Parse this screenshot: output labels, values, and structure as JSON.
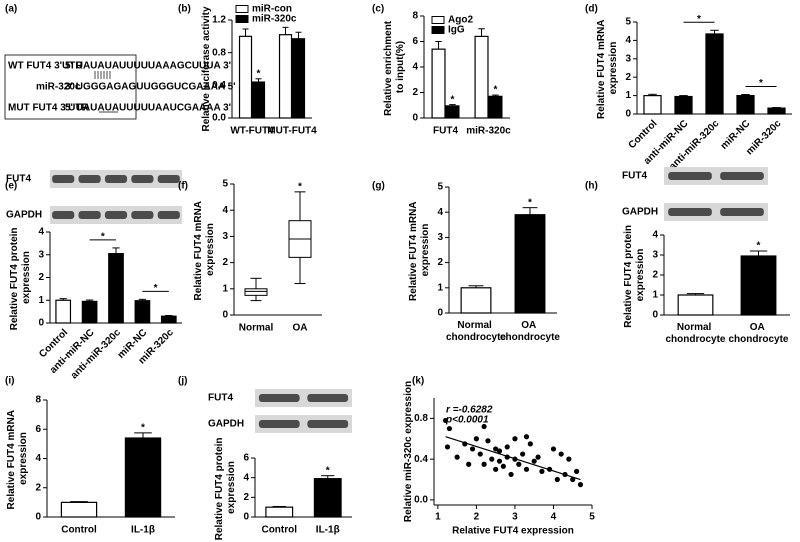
{
  "diagram": {
    "panel_label": "(a)",
    "rows": [
      {
        "label": "WT FUT4 3'UTR",
        "sequence": "5' UAUAUAUUUUUAAAGCUUUA 3'"
      },
      {
        "label": "miR-320c",
        "sequence": "3' UGGGAGAGUUGGGUCGAAAA 5'"
      },
      {
        "label": "MUT FUT4 3'UTR",
        "sequence": "5' UAUAUAUUUUUAAUCGAAAA 3'"
      }
    ]
  },
  "chart_data": [
    {
      "type": "bar",
      "panel_label": "(b)",
      "ylabel": "Relative luciferase activity",
      "categories": [
        "WT-FUT4",
        "MUT-FUT4"
      ],
      "series": [
        {
          "name": "miR-con",
          "color": "#ffffff",
          "values": [
            1.0,
            1.02
          ],
          "errors": [
            0.09,
            0.09
          ]
        },
        {
          "name": "miR-320c",
          "color": "#000000",
          "values": [
            0.44,
            0.97
          ],
          "errors": [
            0.04,
            0.08
          ]
        }
      ],
      "ylim": [
        0,
        1.2
      ],
      "yticks": [
        {
          "value": 0,
          "label": "0.0"
        },
        0.4,
        0.8,
        1.2
      ],
      "legend": "top-left",
      "annotations": [
        {
          "text": "*",
          "category": "WT-FUT4",
          "series": "miR-320c"
        }
      ]
    },
    {
      "type": "bar",
      "panel_label": "(c)",
      "ylabel": "Relative enrichment to input(%)",
      "categories": [
        "FUT4",
        "miR-320c"
      ],
      "series": [
        {
          "name": "Ago2",
          "color": "#ffffff",
          "values": [
            5.4,
            6.4
          ],
          "errors": [
            0.6,
            0.6
          ]
        },
        {
          "name": "IgG",
          "color": "#000000",
          "values": [
            0.95,
            1.7
          ],
          "errors": [
            0.1,
            0.1
          ]
        }
      ],
      "ylim": [
        0,
        8
      ],
      "yticks": [
        0,
        2,
        4,
        6,
        8
      ],
      "legend": "top-left",
      "annotations": [
        {
          "text": "*",
          "category": "FUT4",
          "series": "IgG"
        },
        {
          "text": "*",
          "category": "miR-320c",
          "series": "IgG"
        }
      ]
    },
    {
      "type": "bar",
      "panel_label": "(d)",
      "ylabel": "Relative FUT4 mRNA expression",
      "categories": [
        "Control",
        "anti-miR-NC",
        "anti-miR-320c",
        "miR-NC",
        "miR-320c"
      ],
      "values": [
        1.0,
        0.95,
        4.35,
        1.0,
        0.32
      ],
      "errors": [
        0.07,
        0.05,
        0.2,
        0.06,
        0.03
      ],
      "colors": [
        "#ffffff",
        "#000000",
        "#000000",
        "#000000",
        "#000000"
      ],
      "ylim": [
        0,
        5
      ],
      "yticks": [
        0,
        1,
        2,
        3,
        4,
        5
      ],
      "annotations": [
        {
          "text": "*",
          "from": "anti-miR-NC",
          "to": "anti-miR-320c"
        },
        {
          "text": "*",
          "from": "miR-NC",
          "to": "miR-320c"
        }
      ]
    },
    {
      "type": "bar",
      "panel_label": "(e)",
      "ylabel": "Relative FUT4 protein expression",
      "blot_labels": [
        "FUT4",
        "GAPDH"
      ],
      "categories": [
        "Control",
        "anti-miR-NC",
        "anti-miR-320c",
        "miR-NC",
        "miR-320c"
      ],
      "values": [
        1.0,
        0.95,
        3.05,
        0.98,
        0.3
      ],
      "errors": [
        0.07,
        0.06,
        0.25,
        0.06,
        0.03
      ],
      "colors": [
        "#ffffff",
        "#000000",
        "#000000",
        "#000000",
        "#000000"
      ],
      "ylim": [
        0,
        4
      ],
      "yticks": [
        0,
        1,
        2,
        3,
        4
      ],
      "annotations": [
        {
          "text": "*",
          "from": "anti-miR-NC",
          "to": "anti-miR-320c"
        },
        {
          "text": "*",
          "from": "miR-NC",
          "to": "miR-320c"
        }
      ]
    },
    {
      "type": "box",
      "panel_label": "(f)",
      "ylabel": "Relative FUT4 mRNA expression",
      "categories": [
        "Normal",
        "OA"
      ],
      "boxes": [
        {
          "min": 0.55,
          "q1": 0.75,
          "median": 0.9,
          "q3": 1.0,
          "max": 1.4
        },
        {
          "min": 1.2,
          "q1": 2.2,
          "median": 2.9,
          "q3": 3.6,
          "max": 4.7
        }
      ],
      "ylim": [
        0,
        5
      ],
      "yticks": [
        0,
        1,
        2,
        3,
        4,
        5
      ],
      "annotations": [
        {
          "text": "*",
          "category": "OA"
        }
      ]
    },
    {
      "type": "bar",
      "panel_label": "(g)",
      "ylabel": "Relative FUT4 mRNA expression",
      "categories": [
        "Normal chondrocyte",
        "OA chondrocyte"
      ],
      "values": [
        1.0,
        3.9
      ],
      "errors": [
        0.08,
        0.28
      ],
      "colors": [
        "#ffffff",
        "#000000"
      ],
      "ylim": [
        0,
        5
      ],
      "yticks": [
        0,
        1,
        2,
        3,
        4,
        5
      ],
      "annotations": [
        {
          "text": "*",
          "category": "OA chondrocyte"
        }
      ]
    },
    {
      "type": "bar",
      "panel_label": "(h)",
      "ylabel": "Relative FUT4 protein expression",
      "blot_labels": [
        "FUT4",
        "GAPDH"
      ],
      "categories": [
        "Normal chondrocyte",
        "OA chondrocyte"
      ],
      "values": [
        1.0,
        2.95
      ],
      "errors": [
        0.07,
        0.25
      ],
      "colors": [
        "#ffffff",
        "#000000"
      ],
      "ylim": [
        0,
        4
      ],
      "yticks": [
        0,
        1,
        2,
        3,
        4
      ],
      "annotations": [
        {
          "text": "*",
          "category": "OA chondrocyte"
        }
      ]
    },
    {
      "type": "bar",
      "panel_label": "(i)",
      "ylabel": "Relative FUT4 mRNA expression",
      "categories": [
        "Control",
        "IL-1β"
      ],
      "values": [
        1.0,
        5.4
      ],
      "errors": [
        0.05,
        0.35
      ],
      "colors": [
        "#ffffff",
        "#000000"
      ],
      "ylim": [
        0,
        8
      ],
      "yticks": [
        0,
        2,
        4,
        6,
        8
      ],
      "annotations": [
        {
          "text": "*",
          "category": "IL-1β"
        }
      ]
    },
    {
      "type": "bar",
      "panel_label": "(j)",
      "ylabel": "Relative FUT4 protein expression",
      "blot_labels": [
        "FUT4",
        "GAPDH"
      ],
      "categories": [
        "Control",
        "IL-1β"
      ],
      "values": [
        1.0,
        3.9
      ],
      "errors": [
        0.07,
        0.3
      ],
      "colors": [
        "#ffffff",
        "#000000"
      ],
      "ylim": [
        0,
        6
      ],
      "yticks": [
        0,
        2,
        4,
        6
      ],
      "annotations": [
        {
          "text": "*",
          "category": "IL-1β"
        }
      ]
    },
    {
      "type": "scatter",
      "panel_label": "(k)",
      "ylabel": "Relative miR-320c expression",
      "xlabel": "Relative FUT4 expression",
      "stats": [
        "r =-0.6282",
        "p<0.0001"
      ],
      "x": [
        1.2,
        1.25,
        1.3,
        1.5,
        1.7,
        1.8,
        1.9,
        2.0,
        2.1,
        2.2,
        2.3,
        2.4,
        2.5,
        2.5,
        2.6,
        2.6,
        2.7,
        2.8,
        2.9,
        3.0,
        3.0,
        3.1,
        3.2,
        3.3,
        3.4,
        3.5,
        3.6,
        3.7,
        3.9,
        4.0,
        4.1,
        4.2,
        4.3,
        4.4,
        4.5,
        4.6,
        4.7,
        2.8,
        3.3,
        2.2
      ],
      "y": [
        0.78,
        0.52,
        0.7,
        0.42,
        0.55,
        0.35,
        0.5,
        0.6,
        0.45,
        0.35,
        0.58,
        0.4,
        0.5,
        0.3,
        0.48,
        0.38,
        0.33,
        0.52,
        0.25,
        0.6,
        0.4,
        0.35,
        0.45,
        0.3,
        0.55,
        0.38,
        0.42,
        0.28,
        0.3,
        0.5,
        0.2,
        0.45,
        0.25,
        0.4,
        0.2,
        0.28,
        0.15,
        0.42,
        0.62,
        0.72
      ],
      "trend_line": {
        "x": [
          1.2,
          4.7
        ],
        "y": [
          0.62,
          0.2
        ]
      },
      "xlim": [
        0.9,
        5
      ],
      "xticks": [
        1,
        2,
        3,
        4,
        5
      ],
      "ylim": [
        -0.05,
        1.0
      ],
      "yticks": [
        {
          "value": 0,
          "label": "0.0"
        },
        0.4,
        0.8
      ]
    }
  ]
}
